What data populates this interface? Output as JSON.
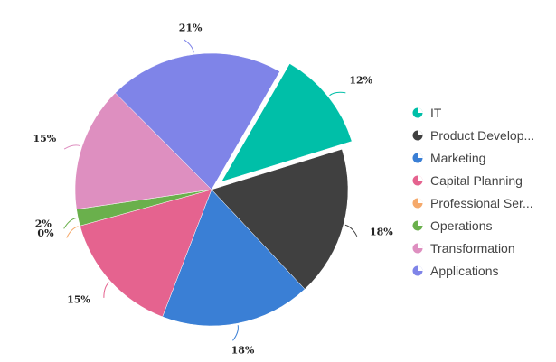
{
  "chart_data": {
    "type": "pie",
    "title": "",
    "legend_position": "right",
    "exploded": "IT",
    "series": [
      {
        "name": "IT",
        "value": 12,
        "label": "12%",
        "color": "#00bfa8"
      },
      {
        "name": "Product Develop...",
        "value": 18,
        "label": "18%",
        "color": "#404040"
      },
      {
        "name": "Marketing",
        "value": 18,
        "label": "18%",
        "color": "#3a7fd5"
      },
      {
        "name": "Capital Planning",
        "value": 15,
        "label": "15%",
        "color": "#e5638f"
      },
      {
        "name": "Professional Ser...",
        "value": 0,
        "label": "0%",
        "color": "#f5a96b"
      },
      {
        "name": "Operations",
        "value": 2,
        "label": "2%",
        "color": "#6ab04c"
      },
      {
        "name": "Transformation",
        "value": 15,
        "label": "15%",
        "color": "#de8fc0"
      },
      {
        "name": "Applications",
        "value": 21,
        "label": "21%",
        "color": "#7f84e8"
      }
    ]
  }
}
